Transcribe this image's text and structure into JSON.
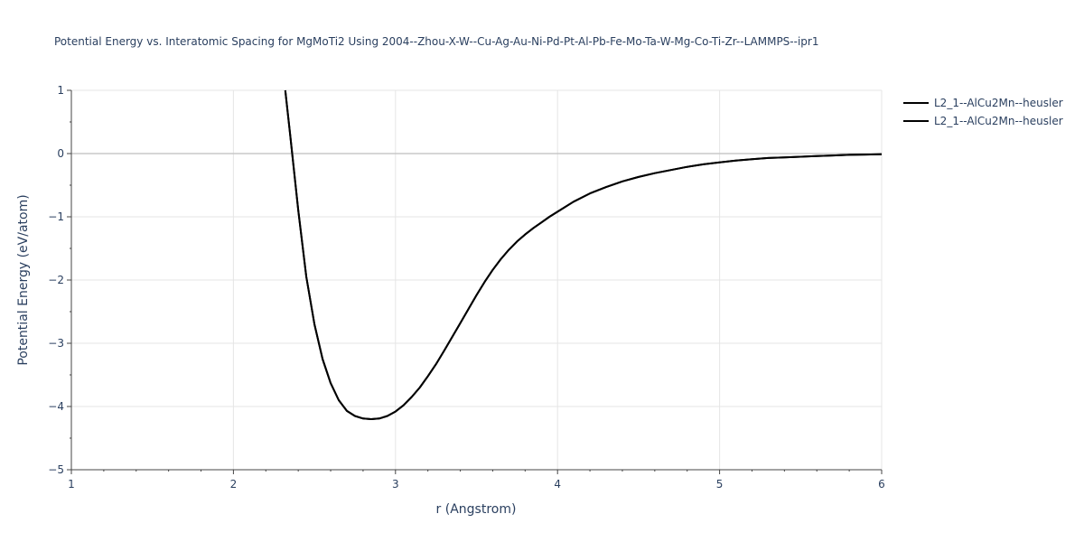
{
  "chart_data": {
    "type": "line",
    "title": "Potential Energy vs. Interatomic Spacing for MgMoTi2 Using 2004--Zhou-X-W--Cu-Ag-Au-Ni-Pd-Pt-Al-Pb-Fe-Mo-Ta-W-Mg-Co-Ti-Zr--LAMMPS--ipr1",
    "xlabel": "r (Angstrom)",
    "ylabel": "Potential Energy (eV/atom)",
    "xlim": [
      1,
      6
    ],
    "ylim": [
      -5,
      1
    ],
    "xticks": [
      1,
      2,
      3,
      4,
      5,
      6
    ],
    "yticks": [
      1,
      0,
      -1,
      -2,
      -3,
      -4,
      -5
    ],
    "xtick_labels": [
      "1",
      "2",
      "3",
      "4",
      "5",
      "6"
    ],
    "ytick_labels": [
      "1",
      "0",
      "−1",
      "−2",
      "−3",
      "−4",
      "−5"
    ],
    "grid": true,
    "legend_position": "top-right",
    "series": [
      {
        "name": "L2_1--AlCu2Mn--heusler",
        "color": "#000000",
        "x": [
          2.32,
          2.35,
          2.4,
          2.45,
          2.5,
          2.55,
          2.6,
          2.65,
          2.7,
          2.75,
          2.8,
          2.85,
          2.9,
          2.95,
          3.0,
          3.05,
          3.1,
          3.15,
          3.2,
          3.25,
          3.3,
          3.35,
          3.4,
          3.45,
          3.5,
          3.55,
          3.6,
          3.65,
          3.7,
          3.75,
          3.8,
          3.85,
          3.9,
          3.95,
          4.0,
          4.1,
          4.2,
          4.3,
          4.4,
          4.5,
          4.6,
          4.7,
          4.8,
          4.9,
          5.0,
          5.1,
          5.2,
          5.3,
          5.4,
          5.5,
          5.6,
          5.7,
          5.8,
          5.9,
          6.0
        ],
        "y": [
          1.0,
          0.3,
          -0.9,
          -1.95,
          -2.7,
          -3.25,
          -3.63,
          -3.9,
          -4.07,
          -4.15,
          -4.19,
          -4.2,
          -4.19,
          -4.15,
          -4.08,
          -3.98,
          -3.85,
          -3.7,
          -3.52,
          -3.33,
          -3.12,
          -2.9,
          -2.68,
          -2.46,
          -2.24,
          -2.03,
          -1.84,
          -1.67,
          -1.52,
          -1.39,
          -1.28,
          -1.18,
          -1.09,
          -1.0,
          -0.92,
          -0.76,
          -0.63,
          -0.53,
          -0.44,
          -0.37,
          -0.31,
          -0.26,
          -0.21,
          -0.17,
          -0.14,
          -0.11,
          -0.09,
          -0.07,
          -0.06,
          -0.05,
          -0.04,
          -0.03,
          -0.02,
          -0.015,
          -0.01
        ]
      },
      {
        "name": "L2_1--AlCu2Mn--heusler",
        "color": "#000000",
        "x": [
          2.32,
          2.35,
          2.4,
          2.45,
          2.5,
          2.55,
          2.6,
          2.65,
          2.7,
          2.75,
          2.8,
          2.85,
          2.9,
          2.95,
          3.0,
          3.05,
          3.1,
          3.15,
          3.2,
          3.25,
          3.3,
          3.35,
          3.4,
          3.45,
          3.5,
          3.55,
          3.6,
          3.65,
          3.7,
          3.75,
          3.8,
          3.85,
          3.9,
          3.95,
          4.0,
          4.1,
          4.2,
          4.3,
          4.4,
          4.5,
          4.6,
          4.7,
          4.8,
          4.9,
          5.0,
          5.1,
          5.2,
          5.3,
          5.4,
          5.5,
          5.6,
          5.7,
          5.8,
          5.9,
          6.0
        ],
        "y": [
          1.0,
          0.3,
          -0.9,
          -1.95,
          -2.7,
          -3.25,
          -3.63,
          -3.9,
          -4.07,
          -4.15,
          -4.19,
          -4.2,
          -4.19,
          -4.15,
          -4.08,
          -3.98,
          -3.85,
          -3.7,
          -3.52,
          -3.33,
          -3.12,
          -2.9,
          -2.68,
          -2.46,
          -2.24,
          -2.03,
          -1.84,
          -1.67,
          -1.52,
          -1.39,
          -1.28,
          -1.18,
          -1.09,
          -1.0,
          -0.92,
          -0.76,
          -0.63,
          -0.53,
          -0.44,
          -0.37,
          -0.31,
          -0.26,
          -0.21,
          -0.17,
          -0.14,
          -0.11,
          -0.09,
          -0.07,
          -0.06,
          -0.05,
          -0.04,
          -0.03,
          -0.02,
          -0.015,
          -0.01
        ]
      }
    ]
  }
}
